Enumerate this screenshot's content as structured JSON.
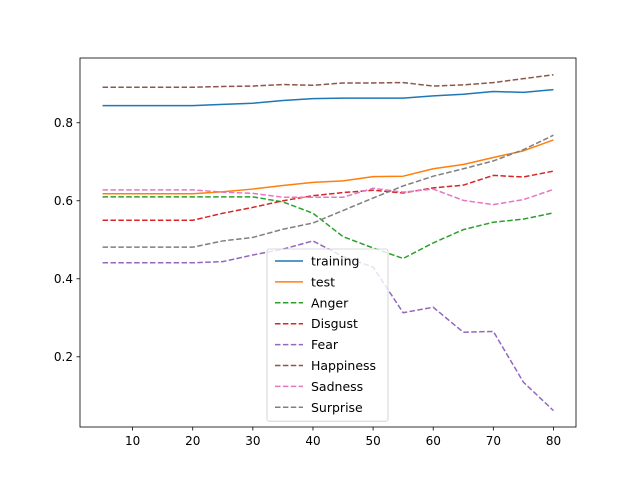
{
  "chart_data": {
    "type": "line",
    "title": "",
    "xlabel": "",
    "ylabel": "",
    "xlim": [
      1.25,
      83.75
    ],
    "ylim": [
      0.02,
      0.966
    ],
    "xticks": [
      10,
      20,
      30,
      40,
      50,
      60,
      70,
      80
    ],
    "yticks": [
      0.2,
      0.4,
      0.6,
      0.8
    ],
    "ytick_labels": [
      "0.2",
      "0.4",
      "0.6",
      "0.8"
    ],
    "grid": false,
    "legend_position": "lower-center",
    "x": [
      5,
      10,
      15,
      20,
      25,
      30,
      35,
      40,
      45,
      50,
      55,
      60,
      65,
      70,
      75,
      80
    ],
    "series": [
      {
        "name": "training",
        "color": "#1f77b4",
        "style": "solid",
        "values": [
          0.844,
          0.844,
          0.844,
          0.844,
          0.847,
          0.85,
          0.857,
          0.862,
          0.863,
          0.863,
          0.863,
          0.869,
          0.873,
          0.88,
          0.878,
          0.885
        ]
      },
      {
        "name": "test",
        "color": "#ff7f0e",
        "style": "solid",
        "values": [
          0.618,
          0.618,
          0.618,
          0.618,
          0.623,
          0.63,
          0.639,
          0.647,
          0.651,
          0.662,
          0.663,
          0.682,
          0.693,
          0.711,
          0.728,
          0.756
        ]
      },
      {
        "name": "Anger",
        "color": "#2ca02c",
        "style": "dashed",
        "values": [
          0.61,
          0.61,
          0.61,
          0.61,
          0.61,
          0.61,
          0.597,
          0.568,
          0.508,
          0.479,
          0.452,
          0.492,
          0.526,
          0.545,
          0.553,
          0.569
        ]
      },
      {
        "name": "Disgust",
        "color": "#d62728",
        "style": "dashed",
        "values": [
          0.55,
          0.55,
          0.55,
          0.55,
          0.568,
          0.583,
          0.6,
          0.613,
          0.621,
          0.627,
          0.62,
          0.633,
          0.64,
          0.665,
          0.661,
          0.676
        ]
      },
      {
        "name": "Fear",
        "color": "#9467bd",
        "style": "dashed",
        "values": [
          0.441,
          0.441,
          0.441,
          0.441,
          0.444,
          0.461,
          0.476,
          0.497,
          0.457,
          0.43,
          0.313,
          0.327,
          0.263,
          0.265,
          0.135,
          0.062
        ]
      },
      {
        "name": "Happiness",
        "color": "#8c564b",
        "style": "dashed",
        "values": [
          0.891,
          0.891,
          0.891,
          0.891,
          0.893,
          0.894,
          0.898,
          0.896,
          0.902,
          0.902,
          0.903,
          0.894,
          0.897,
          0.903,
          0.913,
          0.923
        ]
      },
      {
        "name": "Sadness",
        "color": "#e377c2",
        "style": "dashed",
        "values": [
          0.628,
          0.628,
          0.628,
          0.628,
          0.622,
          0.619,
          0.609,
          0.609,
          0.609,
          0.632,
          0.622,
          0.63,
          0.601,
          0.59,
          0.603,
          0.629
        ]
      },
      {
        "name": "Surprise",
        "color": "#7f7f7f",
        "style": "dashed",
        "values": [
          0.481,
          0.481,
          0.481,
          0.481,
          0.497,
          0.506,
          0.527,
          0.543,
          0.575,
          0.607,
          0.638,
          0.663,
          0.682,
          0.702,
          0.731,
          0.768
        ]
      }
    ]
  }
}
